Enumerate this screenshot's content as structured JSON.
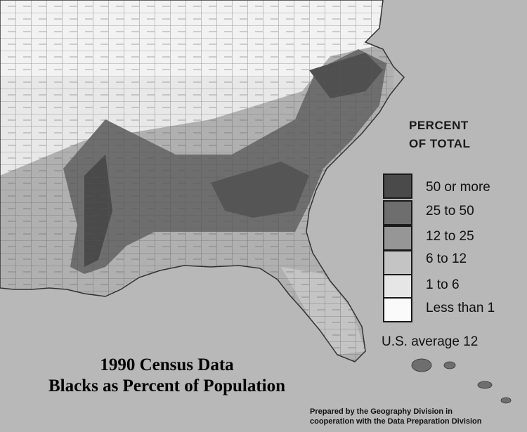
{
  "map": {
    "title_line1": "1990 Census Data",
    "title_line2": "Blacks as Percent of Population",
    "background_color": "#b8b8b8"
  },
  "legend": {
    "title_line1": "PERCENT",
    "title_line2": "OF TOTAL",
    "items": [
      {
        "label": "50 or more",
        "color": "#4a4a4a"
      },
      {
        "label": "25 to 50",
        "color": "#6e6e6e"
      },
      {
        "label": "12 to 25",
        "color": "#969696"
      },
      {
        "label": "6 to 12",
        "color": "#c4c4c4"
      },
      {
        "label": "1 to 6",
        "color": "#e6e6e6"
      },
      {
        "label": "Less than 1",
        "color": "#fafafa"
      }
    ],
    "us_average": "U.S. average 12"
  },
  "credit": {
    "line1": "Prepared by the Geography Division in",
    "line2": "cooperation with the Data Preparation Division"
  }
}
